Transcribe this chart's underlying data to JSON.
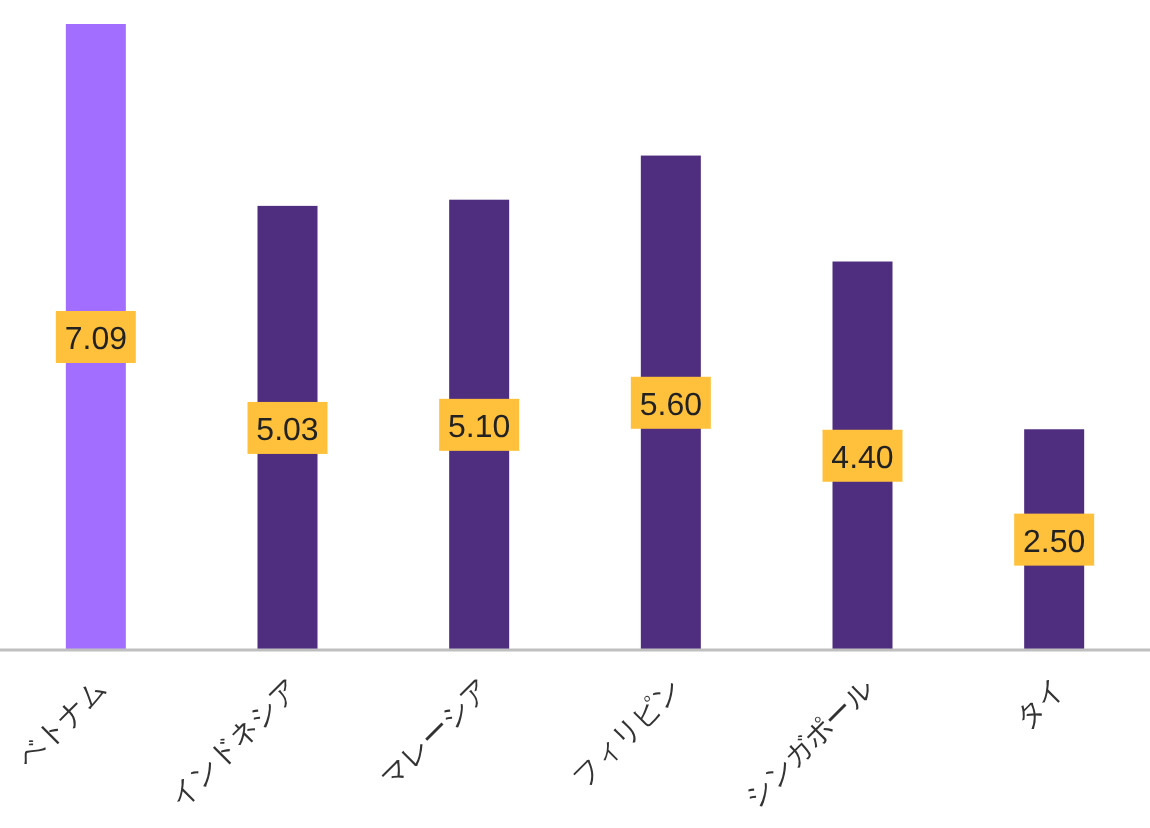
{
  "chart_data": {
    "type": "bar",
    "categories": [
      "ベトナム",
      "インドネシア",
      "マレーシア",
      "フィリピン",
      "シンガポール",
      "タイ"
    ],
    "values": [
      7.09,
      5.03,
      5.1,
      5.6,
      4.4,
      2.5
    ],
    "value_labels": [
      "7.09",
      "5.03",
      "5.10",
      "5.60",
      "4.40",
      "2.50"
    ],
    "colors": [
      "#a16eff",
      "#4f2d7f",
      "#4f2d7f",
      "#4f2d7f",
      "#4f2d7f",
      "#4f2d7f"
    ],
    "ylim": [
      0,
      7.09
    ],
    "tick_labels": "x"
  }
}
